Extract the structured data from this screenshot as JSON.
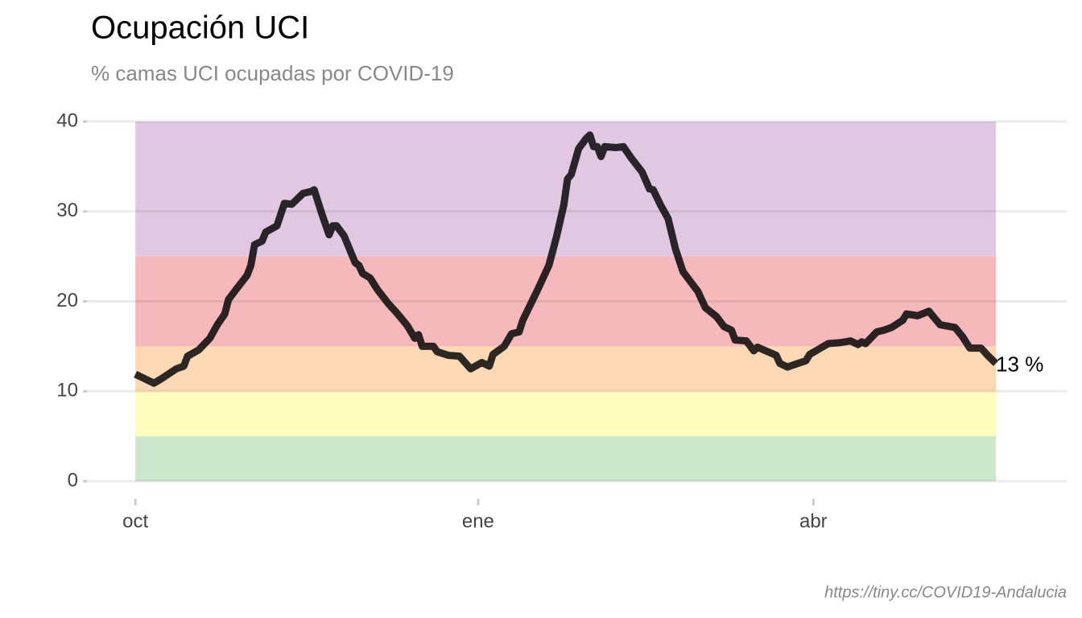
{
  "chart_data": {
    "type": "line",
    "title": "Ocupación UCI",
    "subtitle": "% camas UCI ocupadas por COVID-19",
    "caption": "https://tiny.cc/COVID19-Andalucia",
    "x": [
      0,
      5,
      7,
      11,
      13,
      14,
      17,
      20,
      22,
      24,
      25,
      27,
      30,
      31,
      32,
      34,
      35,
      38,
      40,
      42,
      45,
      47,
      48,
      50,
      52,
      53,
      54,
      56,
      59,
      60,
      61,
      63,
      65,
      68,
      70,
      73,
      75,
      76,
      77,
      80,
      81,
      84,
      87,
      90,
      93,
      95,
      96,
      99,
      101,
      103,
      104,
      108,
      111,
      113,
      115,
      116,
      117,
      119,
      121,
      122,
      123,
      124,
      125,
      126,
      129,
      131,
      133,
      136,
      138,
      139,
      141,
      143,
      145,
      147,
      149,
      151,
      153,
      156,
      158,
      160,
      161,
      164,
      166,
      167,
      172,
      173,
      175,
      180,
      181,
      186,
      189,
      192,
      194,
      195,
      196,
      199,
      201,
      203,
      206,
      207,
      210,
      213,
      214,
      216,
      220,
      222,
      224,
      227,
      229,
      231
    ],
    "values": [
      11.9,
      10.9,
      11.4,
      12.5,
      12.8,
      13.9,
      14.6,
      15.9,
      17.4,
      18.6,
      20.2,
      21.3,
      22.9,
      24.0,
      26.3,
      26.7,
      27.7,
      28.4,
      30.9,
      30.8,
      32.0,
      32.2,
      32.4,
      29.8,
      27.4,
      28.4,
      28.4,
      27.3,
      24.3,
      24.0,
      23.1,
      22.6,
      21.3,
      19.7,
      18.8,
      17.3,
      15.9,
      16.3,
      15.0,
      15.0,
      14.4,
      14.0,
      13.9,
      12.5,
      13.2,
      12.8,
      14.1,
      15.0,
      16.4,
      16.6,
      17.9,
      21.3,
      24.0,
      27.1,
      30.7,
      33.6,
      34.1,
      37.0,
      38.1,
      38.5,
      37.2,
      37.2,
      36.1,
      37.2,
      37.1,
      37.2,
      36.0,
      34.4,
      32.5,
      32.4,
      30.7,
      29.2,
      25.8,
      23.3,
      22.2,
      21.1,
      19.3,
      18.3,
      17.2,
      16.8,
      15.7,
      15.6,
      14.5,
      14.9,
      14.0,
      13.1,
      12.7,
      13.4,
      14.1,
      15.3,
      15.4,
      15.6,
      15.2,
      15.5,
      15.3,
      16.6,
      16.8,
      17.1,
      17.9,
      18.6,
      18.4,
      18.9,
      18.4,
      17.4,
      17.1,
      16.1,
      14.8,
      14.8,
      13.9,
      13.1
    ],
    "color": "#000000",
    "end_label": "13 %",
    "bands": [
      {
        "from": 0,
        "to": 5,
        "color": "#cce7cb"
      },
      {
        "from": 5,
        "to": 10,
        "color": "#fffdc0"
      },
      {
        "from": 10,
        "to": 15,
        "color": "#fdd8b5"
      },
      {
        "from": 15,
        "to": 25,
        "color": "#f5b9bb"
      },
      {
        "from": 25,
        "to": 40,
        "color": "#e0c8e2"
      }
    ],
    "xlim": [
      -13,
      250
    ],
    "ylim": [
      0,
      40
    ],
    "xticks": [
      {
        "value": 0,
        "label": "oct"
      },
      {
        "value": 92,
        "label": "ene"
      },
      {
        "value": 182,
        "label": "abr"
      }
    ],
    "yticks": [
      0,
      10,
      20,
      30,
      40
    ],
    "grid": true
  }
}
